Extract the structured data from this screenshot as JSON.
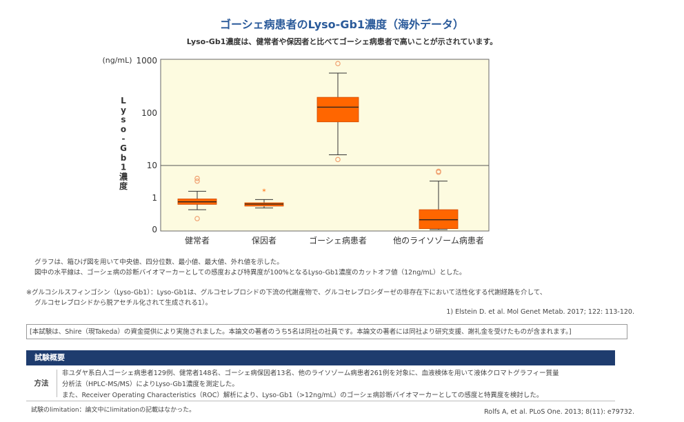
{
  "header": {
    "title": "ゴーシェ病患者のLyso-Gb1濃度（海外データ）",
    "subtitle": "Lyso-Gb1濃度は、健常者や保因者と比べてゴーシェ病患者で高いことが示されています。"
  },
  "chart_data": {
    "type": "box",
    "unit_label": "(ng/mL)",
    "ylabel_chars": [
      "L",
      "y",
      "s",
      "o",
      "-",
      "G",
      "b",
      "1",
      "濃",
      "度"
    ],
    "y_scale": "log-like",
    "y_ticks": [
      {
        "label": "1000",
        "value": 1000
      },
      {
        "label": "100",
        "value": 100
      },
      {
        "label": "10",
        "value": 10
      },
      {
        "label": "1",
        "value": 1
      },
      {
        "label": "0",
        "value": 0.2
      }
    ],
    "cutoff": 12,
    "background_color": "#fdfbe0",
    "box_color": "#ff6600",
    "outlier_color": "#f0a070",
    "categories": [
      {
        "label": "健常者",
        "min": 0.55,
        "q1": 0.72,
        "median": 0.82,
        "q3": 0.95,
        "max": 1.6,
        "outliers": [
          3.3,
          4.0,
          0.35
        ],
        "star_outliers": []
      },
      {
        "label": "保因者",
        "min": 0.6,
        "q1": 0.66,
        "median": 0.73,
        "q3": 0.78,
        "max": 0.92,
        "outliers": [],
        "star_outliers": [
          1.6
        ]
      },
      {
        "label": "ゴーシェ病患者",
        "min": 16,
        "q1": 68,
        "median": 130,
        "q3": 200,
        "max": 580,
        "outliers": [
          880,
          13
        ],
        "star_outliers": []
      },
      {
        "label": "他のライソゾーム病患者",
        "min": 0.2,
        "q1": 0.21,
        "median": 0.33,
        "q3": 0.55,
        "max": 3.3,
        "outliers": [
          6.2,
          6.6
        ],
        "star_outliers": []
      }
    ]
  },
  "notes": {
    "line1": "グラフは、箱ひげ図を用いて中央値、四分位数、最小値、最大値、外れ値を示した。",
    "line2": "図中の水平線は、ゴーシェ病の診断バイオマーカーとしての感度および特異度が100%となるLyso-Gb1濃度のカットオフ値（12ng/mL）とした。",
    "footnote1": "※グルコシルスフィンゴシン（Lyso-Gb1）：Lyso-Gb1は、グルコセレブロシドの下流の代謝産物で、グルコセレブロシダーゼの非存在下において活性化する代謝経路を介して、",
    "footnote2": "グルコセレブロシドから脱アセチル化されて生成される1）。",
    "ref1": "1) Elstein D. et al. Mol Genet Metab. 2017; 122: 113-120.",
    "funding": "[本試験は、Shire（現Takeda）の資金提供により実施されました。本論文の著者のうち5名は同社の社員です。本論文の著者には同社より研究支援、謝礼金を受けたものが含まれます。]",
    "summary_title": "試験概要",
    "method_label": "方法",
    "method_line1": "非ユダヤ系白人ゴーシェ病患者129例、健常者148名、ゴーシェ病保因者13名、他のライソゾーム病患者261例を対象に、血液検体を用いて液体クロマトグラフィー質量",
    "method_line2": "分析法（HPLC-MS/MS）によりLyso-Gb1濃度を測定した。",
    "method_line3": "また、Receiver Operating Characteristics（ROC）解析により、Lyso-Gb1（>12ng/mL）のゴーシェ病診断バイオマーカーとしての感度と特異度を検討した。",
    "limitation": "試験のlimitation：論文中にlimitationの記載はなかった。",
    "ref2": "Rolfs A, et al. PLoS One. 2013; 8(11): e79732."
  }
}
